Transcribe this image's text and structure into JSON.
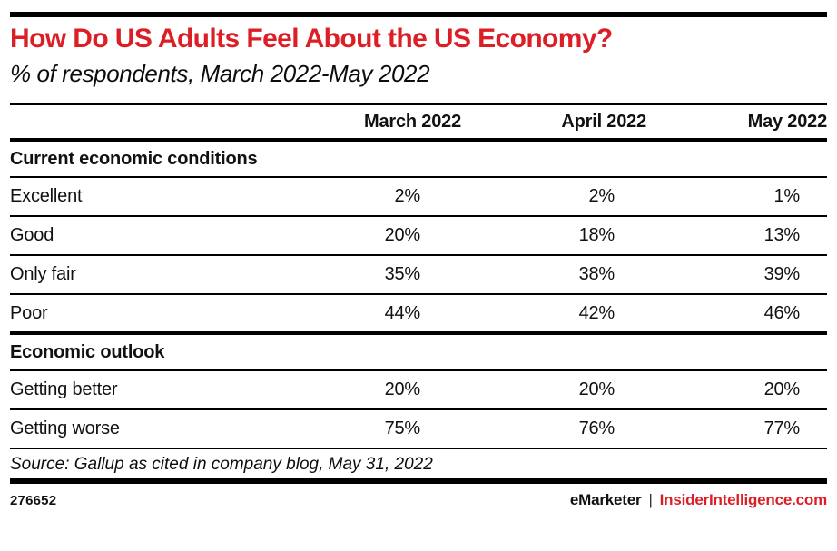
{
  "brand": {
    "accent_red": "#dc1f26",
    "rule_black": "#000000"
  },
  "chart_data": {
    "type": "table",
    "title": "How Do US Adults Feel About the US Economy?",
    "subtitle": "% of respondents, March 2022-May 2022",
    "columns": [
      "March 2022",
      "April 2022",
      "May 2022"
    ],
    "sections": [
      {
        "header": "Current economic conditions",
        "rows": [
          {
            "label": "Excellent",
            "values": [
              2,
              2,
              1
            ],
            "labels": [
              "2%",
              "2%",
              "1%"
            ]
          },
          {
            "label": "Good",
            "values": [
              20,
              18,
              13
            ],
            "labels": [
              "20%",
              "18%",
              "13%"
            ]
          },
          {
            "label": "Only fair",
            "values": [
              35,
              38,
              39
            ],
            "labels": [
              "35%",
              "38%",
              "39%"
            ]
          },
          {
            "label": "Poor",
            "values": [
              44,
              42,
              46
            ],
            "labels": [
              "44%",
              "42%",
              "46%"
            ]
          }
        ]
      },
      {
        "header": "Economic outlook",
        "rows": [
          {
            "label": "Getting better",
            "values": [
              20,
              20,
              20
            ],
            "labels": [
              "20%",
              "20%",
              "20%"
            ]
          },
          {
            "label": "Getting worse",
            "values": [
              75,
              76,
              77
            ],
            "labels": [
              "75%",
              "76%",
              "77%"
            ]
          }
        ]
      }
    ],
    "source": "Source: Gallup as cited in company blog, May 31, 2022"
  },
  "footer": {
    "id": "276652",
    "brand": "eMarketer",
    "separator": "|",
    "site": "InsiderIntelligence.com"
  }
}
